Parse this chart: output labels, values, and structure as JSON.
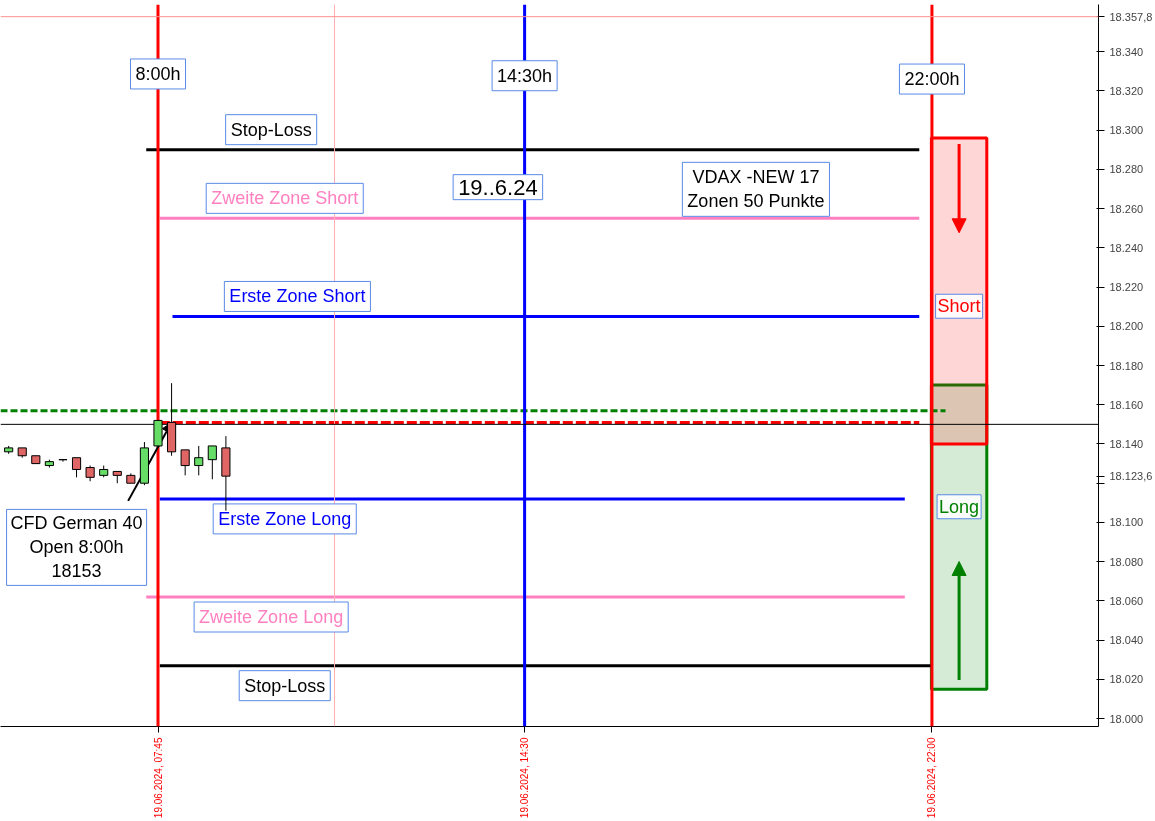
{
  "chart_data": {
    "type": "candlestick",
    "x": [
      "2024-06-19T05:00",
      "2024-06-19T05:15",
      "2024-06-19T05:30",
      "2024-06-19T05:45",
      "2024-06-19T06:00",
      "2024-06-19T06:15",
      "2024-06-19T06:30",
      "2024-06-19T06:45",
      "2024-06-19T07:00",
      "2024-06-19T07:15",
      "2024-06-19T07:30",
      "2024-06-19T07:45",
      "2024-06-19T08:00",
      "2024-06-19T08:15",
      "2024-06-19T08:30",
      "2024-06-19T08:45",
      "2024-06-19T09:00"
    ],
    "ohlc": [
      [
        18136,
        18139,
        18135,
        18138
      ],
      [
        18138,
        18138,
        18133,
        18134
      ],
      [
        18134,
        18134,
        18130,
        18130
      ],
      [
        18129,
        18132,
        18128,
        18131
      ],
      [
        18132,
        18132,
        18131,
        18132
      ],
      [
        18133,
        18133,
        18123,
        18127
      ],
      [
        18128,
        18129,
        18121,
        18123
      ],
      [
        18124,
        18129,
        18123,
        18127
      ],
      [
        18126,
        18126,
        18120,
        18124
      ],
      [
        18124,
        18125,
        18120,
        18120
      ],
      [
        18120,
        18141,
        18119,
        18138
      ],
      [
        18139,
        18152,
        18138,
        18152
      ],
      [
        18151,
        18171,
        18134,
        18136
      ],
      [
        18137,
        18137,
        18124,
        18129
      ],
      [
        18129,
        18139,
        18124,
        18133
      ],
      [
        18132,
        18139,
        18122,
        18139
      ],
      [
        18138,
        18144,
        18106,
        18123.6
      ]
    ],
    "colors": [
      "#66dd66",
      "#e06666",
      "#e06666",
      "#66dd66",
      "#000000",
      "#e06666",
      "#e06666",
      "#66dd66",
      "#e06666",
      "#e06666",
      "#66dd66",
      "#66dd66",
      "#e06666",
      "#e06666",
      "#66dd66",
      "#66dd66",
      "#e06666"
    ],
    "series": [
      {
        "type": "line",
        "name": "Stop-Loss",
        "color": "#000000",
        "x": [
          "2024-06-19T07:32",
          "2024-06-19T21:46"
        ],
        "values": [
          18290,
          18290
        ]
      },
      {
        "type": "line",
        "name": "Zweite Zone Short",
        "color": "#ff80c0",
        "x": [
          "2024-06-19T07:47",
          "2024-06-19T21:46"
        ],
        "values": [
          18255,
          18255
        ]
      },
      {
        "type": "line",
        "name": "Erste Zone Short",
        "color": "#0000ff",
        "x": [
          "2024-06-19T08:01",
          "2024-06-19T21:46"
        ],
        "values": [
          18205,
          18205
        ]
      },
      {
        "type": "line",
        "color": "#008000",
        "x": [
          "2024-06-19T04:51",
          "2024-06-19T22:15"
        ],
        "values": [
          18157,
          18157
        ],
        "line_style": "dashed"
      },
      {
        "type": "line",
        "color": "#ff0000",
        "x": [
          "2024-06-19T07:47",
          "2024-06-19T21:46"
        ],
        "values": [
          18151,
          18151
        ],
        "line_style": "dashed"
      },
      {
        "type": "line",
        "name": "Erste Zone Long",
        "color": "#0000ff",
        "x": [
          "2024-06-19T07:47",
          "2024-06-19T21:30"
        ],
        "values": [
          18112,
          18112
        ]
      },
      {
        "type": "line",
        "name": "Zweite Zone Long",
        "color": "#ff80c0",
        "x": [
          "2024-06-19T07:32",
          "2024-06-19T21:30"
        ],
        "values": [
          18062,
          18062
        ]
      },
      {
        "type": "line",
        "name": "Stop-Loss",
        "color": "#000000",
        "x": [
          "2024-06-19T07:47",
          "2024-06-19T22:00"
        ],
        "values": [
          18027,
          18027
        ]
      },
      {
        "type": "bar",
        "name": "Long",
        "color": "#008000",
        "x": [
          "2024-06-19T22:30"
        ],
        "base": [
          18015
        ],
        "values": [
          155
        ]
      },
      {
        "type": "bar",
        "name": "Short",
        "color": "#ff0000",
        "x": [
          "2024-06-19T22:30"
        ],
        "base": [
          18140
        ],
        "values": [
          156
        ]
      }
    ],
    "ref_lines": [
      {
        "axis": "x",
        "value": "2024-06-19T07:45",
        "color": "#ff0000"
      },
      {
        "axis": "x",
        "value": "2024-06-19T14:30",
        "color": "#0000ff"
      },
      {
        "axis": "x",
        "value": "2024-06-19T22:00",
        "color": "#ff0000"
      },
      {
        "axis": "x",
        "value": "2024-06-19T11:00",
        "color": "#ffb0b0"
      },
      {
        "axis": "y",
        "value": 18150,
        "color": "#000000"
      },
      {
        "axis": "y",
        "value": 18357.8,
        "color": "#ff9090"
      }
    ],
    "annotations": [
      {
        "text": "8:00h",
        "x": "2024-06-19T07:45",
        "y": 18328.6
      },
      {
        "text": "14:30h",
        "x": "2024-06-19T14:30",
        "y": 18327.7
      },
      {
        "text": "22:00h",
        "x": "2024-06-19T22:00",
        "y": 18326
      },
      "19..6.24",
      "VDAX -NEW 17\nZonen 50 Punkte",
      {
        "text": "CFD German 40\nOpen 8:00h\n18153",
        "x": "2024-06-19T08:00",
        "y": 18151
      }
    ],
    "xlim": [
      "2024-06-19T04:51",
      "2024-06-20T01:04"
    ],
    "xticks": [
      {
        "value": "2024-06-19T07:45",
        "label": "19.06.2024, 07:45"
      },
      {
        "value": "2024-06-19T14:30",
        "label": "19.06.2024, 14:30"
      },
      {
        "value": "2024-06-19T22:00",
        "label": "19.06.2024, 22:00"
      }
    ],
    "ylim": [
      17996,
      18364
    ],
    "yticks": [
      {
        "value": 18000,
        "label": "18.000"
      },
      {
        "value": 18020,
        "label": "18.020"
      },
      {
        "value": 18040,
        "label": "18.040"
      },
      {
        "value": 18060,
        "label": "18.060"
      },
      {
        "value": 18080,
        "label": "18.080"
      },
      {
        "value": 18100,
        "label": "18.100"
      },
      {
        "value": 18120,
        "label": null
      },
      {
        "value": 18123.6,
        "label": "18.123,6"
      },
      {
        "value": 18140,
        "label": "18.140"
      },
      {
        "value": 18160,
        "label": "18.160"
      },
      {
        "value": 18180,
        "label": "18.180"
      },
      {
        "value": 18200,
        "label": "18.200"
      },
      {
        "value": 18220,
        "label": "18.220"
      },
      {
        "value": 18240,
        "label": "18.240"
      },
      {
        "value": 18260,
        "label": "18.260"
      },
      {
        "value": 18280,
        "label": "18.280"
      },
      {
        "value": 18300,
        "label": "18.300"
      },
      {
        "value": 18320,
        "label": "18.320"
      },
      {
        "value": 18340,
        "label": "18.340"
      },
      {
        "value": 18357.8,
        "label": "18.357,8"
      }
    ],
    "grid": false
  }
}
